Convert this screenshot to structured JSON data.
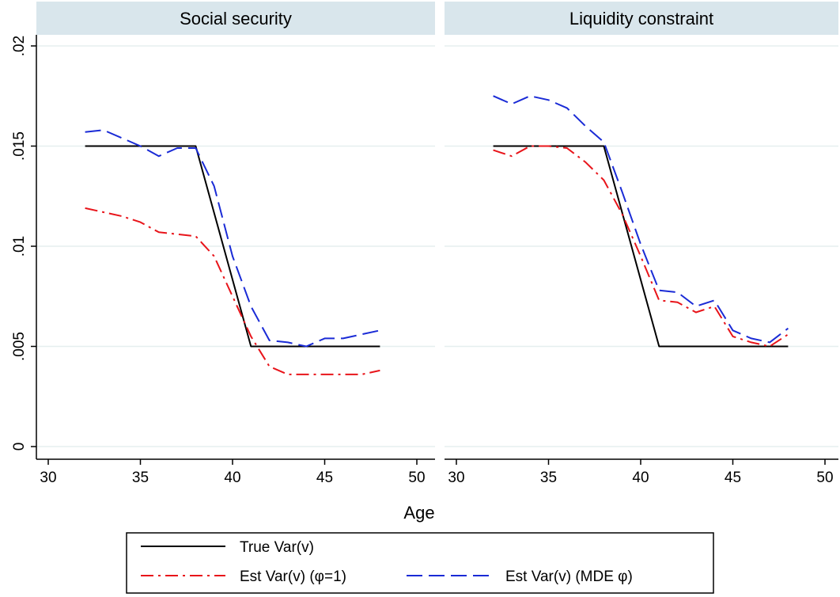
{
  "chart_data": {
    "type": "line",
    "xlabel": "Age",
    "xlim": [
      30,
      50
    ],
    "xticks": [
      30,
      35,
      40,
      45,
      50
    ],
    "ylim": [
      0,
      0.02
    ],
    "yticks": [
      0,
      0.005,
      0.01,
      0.015,
      0.02
    ],
    "ytick_labels": [
      "0",
      ".005",
      ".01",
      ".015",
      ".02"
    ],
    "grid": "horizontal",
    "legend_position": "bottom",
    "legend": {
      "entries": [
        {
          "label": "True Var(v)",
          "color": "#000000",
          "dash": "solid"
        },
        {
          "label": "Est Var(v) (φ=1)",
          "color": "#e8141a",
          "dash": "dash-dot"
        },
        {
          "label": "Est Var(v) (MDE φ)",
          "color": "#1a2bd6",
          "dash": "long-dash"
        }
      ]
    },
    "panels": [
      {
        "title": "Social security",
        "series": [
          {
            "name": "True Var(v)",
            "color": "#000000",
            "points": [
              [
                32,
                0.015
              ],
              [
                38,
                0.015
              ],
              [
                41,
                0.005
              ],
              [
                48,
                0.005
              ]
            ]
          },
          {
            "name": "Est Var(v) (φ=1)",
            "color": "#e8141a",
            "points": [
              [
                32,
                0.0119
              ],
              [
                33,
                0.0117
              ],
              [
                34,
                0.0115
              ],
              [
                35,
                0.0112
              ],
              [
                36,
                0.0107
              ],
              [
                37,
                0.0106
              ],
              [
                38,
                0.0105
              ],
              [
                39,
                0.0095
              ],
              [
                40,
                0.0075
              ],
              [
                41,
                0.0055
              ],
              [
                42,
                0.004
              ],
              [
                43,
                0.0036
              ],
              [
                44,
                0.0036
              ],
              [
                45,
                0.0036
              ],
              [
                46,
                0.0036
              ],
              [
                47,
                0.0036
              ],
              [
                48,
                0.0038
              ]
            ]
          },
          {
            "name": "Est Var(v) (MDE φ)",
            "color": "#1a2bd6",
            "points": [
              [
                32,
                0.0157
              ],
              [
                33,
                0.0158
              ],
              [
                34,
                0.0154
              ],
              [
                35,
                0.015
              ],
              [
                36,
                0.0145
              ],
              [
                37,
                0.0149
              ],
              [
                38,
                0.0149
              ],
              [
                39,
                0.013
              ],
              [
                40,
                0.0095
              ],
              [
                41,
                0.007
              ],
              [
                42,
                0.0053
              ],
              [
                43,
                0.0052
              ],
              [
                44,
                0.005
              ],
              [
                45,
                0.0054
              ],
              [
                46,
                0.0054
              ],
              [
                47,
                0.0056
              ],
              [
                48,
                0.0058
              ]
            ]
          }
        ]
      },
      {
        "title": "Liquidity constraint",
        "series": [
          {
            "name": "True Var(v)",
            "color": "#000000",
            "points": [
              [
                32,
                0.015
              ],
              [
                38,
                0.015
              ],
              [
                41,
                0.005
              ],
              [
                48,
                0.005
              ]
            ]
          },
          {
            "name": "Est Var(v) (φ=1)",
            "color": "#e8141a",
            "points": [
              [
                32,
                0.0148
              ],
              [
                33,
                0.0145
              ],
              [
                34,
                0.015
              ],
              [
                35,
                0.015
              ],
              [
                36,
                0.0149
              ],
              [
                37,
                0.0142
              ],
              [
                38,
                0.0133
              ],
              [
                39,
                0.0116
              ],
              [
                40,
                0.0095
              ],
              [
                41,
                0.0073
              ],
              [
                42,
                0.0072
              ],
              [
                43,
                0.0067
              ],
              [
                44,
                0.007
              ],
              [
                45,
                0.0055
              ],
              [
                46,
                0.0052
              ],
              [
                47,
                0.005
              ],
              [
                48,
                0.0056
              ]
            ]
          },
          {
            "name": "Est Var(v) (MDE φ)",
            "color": "#1a2bd6",
            "points": [
              [
                32,
                0.0175
              ],
              [
                33,
                0.0171
              ],
              [
                34,
                0.0175
              ],
              [
                35,
                0.0173
              ],
              [
                36,
                0.0169
              ],
              [
                37,
                0.016
              ],
              [
                38,
                0.0152
              ],
              [
                39,
                0.0127
              ],
              [
                40,
                0.0101
              ],
              [
                41,
                0.0078
              ],
              [
                42,
                0.0077
              ],
              [
                43,
                0.007
              ],
              [
                44,
                0.0073
              ],
              [
                45,
                0.0058
              ],
              [
                46,
                0.0054
              ],
              [
                47,
                0.0052
              ],
              [
                48,
                0.0059
              ]
            ]
          }
        ]
      }
    ]
  }
}
